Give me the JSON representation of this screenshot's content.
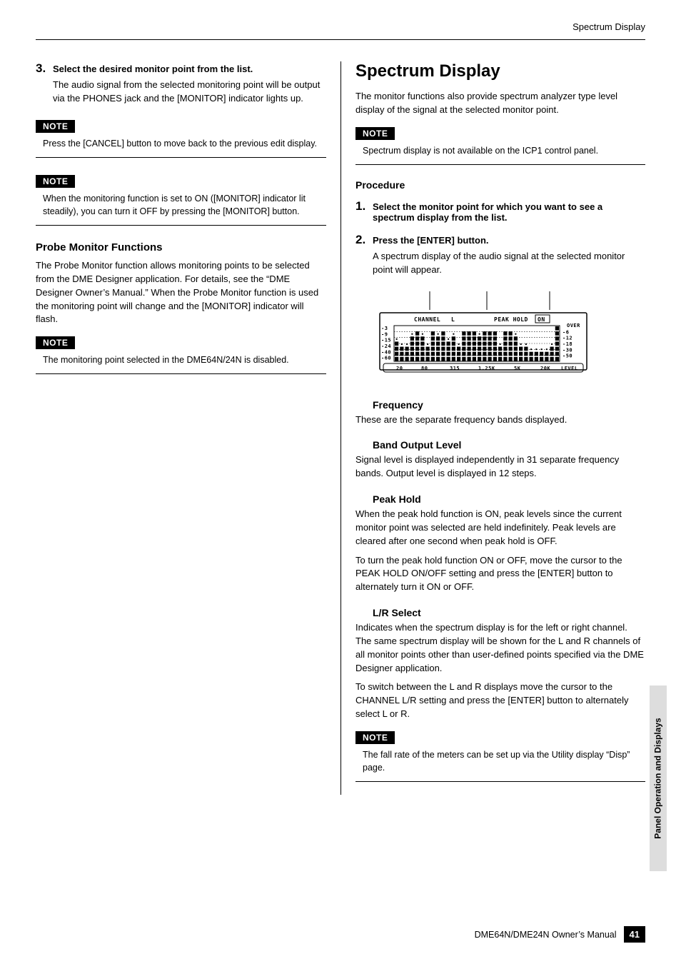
{
  "running_header": "Spectrum Display",
  "left": {
    "step3": {
      "num": "3.",
      "title": "Select the desired monitor point from the list.",
      "body": "The audio signal from the selected monitoring point will be output via the PHONES jack and the [MONITOR] indicator lights up."
    },
    "note1_label": "NOTE",
    "note1_body": "Press the [CANCEL] button to move back to the previous edit display.",
    "note2_label": "NOTE",
    "note2_body": "When the monitoring function is set to ON ([MONITOR] indicator lit steadily), you can turn it OFF by pressing the [MONITOR] button.",
    "probe_h": "Probe Monitor Functions",
    "probe_body": "The Probe Monitor function allows monitoring points to be selected from the DME Designer application. For details, see the “DME Designer Owner’s Manual.” When the Probe Monitor function is used the monitoring point will change and the [MONITOR] indicator will flash.",
    "note3_label": "NOTE",
    "note3_body": "The monitoring point selected in the DME64N/24N is disabled."
  },
  "right": {
    "heading": "Spectrum Display",
    "intro": "The monitor functions also provide spectrum analyzer type level display of the signal at the selected monitor point.",
    "note1_label": "NOTE",
    "note1_body": "Spectrum display is not available on the ICP1 control panel.",
    "proc_h": "Procedure",
    "step1": {
      "num": "1.",
      "title": "Select the monitor point for which you want to see a spectrum display from the list."
    },
    "step2": {
      "num": "2.",
      "title": "Press the [ENTER] button.",
      "body": "A spectrum display of the audio signal at the selected monitor point will appear."
    },
    "spectrum": {
      "label_channel": "CHANNEL",
      "label_lr": "L",
      "label_peak": "PEAK HOLD",
      "label_on": "ON",
      "label_over": "OVER",
      "y_left": [
        "-3",
        "-9",
        "-15",
        "-24",
        "-40",
        "-60"
      ],
      "y_right": [
        "-6",
        "-12",
        "-18",
        "-30",
        "-50"
      ],
      "x_ticks": [
        "20",
        "80",
        "315",
        "1.25K",
        "5K",
        "20K"
      ],
      "x_right": "LEVEL",
      "bars": [
        4,
        3,
        3,
        5,
        6,
        5,
        3,
        6,
        5,
        6,
        4,
        5,
        3,
        6,
        6,
        6,
        5,
        6,
        6,
        6,
        3,
        6,
        6,
        5,
        3,
        3,
        2,
        2,
        2,
        2,
        3,
        7
      ],
      "lead_lines": [
        80,
        160,
        248
      ]
    },
    "freq_h": "Frequency",
    "freq_body": "These are the separate frequency bands displayed.",
    "band_h": "Band Output Level",
    "band_body": "Signal level is displayed independently in 31 separate frequency bands. Output level is displayed in 12 steps.",
    "peak_h": "Peak Hold",
    "peak_body1": "When the peak hold function is ON, peak levels since the current monitor point was selected are held indefinitely. Peak levels are cleared after one second when peak hold is OFF.",
    "peak_body2": "To turn the peak hold function ON or OFF, move the cursor to the PEAK HOLD ON/OFF setting and press the [ENTER] button to alternately turn it ON or OFF.",
    "lr_h": "L/R Select",
    "lr_body1": "Indicates when the spectrum display is for the left or right channel. The same spectrum display will be shown for the L and R channels of all monitor points other than user-defined points specified via the DME Designer application.",
    "lr_body2": "To switch between the L and R displays move the cursor to the CHANNEL L/R setting and press the [ENTER] button to alternately select L or R.",
    "note2_label": "NOTE",
    "note2_body": "The fall rate of the meters can be set up via the Utility display “Disp” page."
  },
  "side_tab": "Panel Operation and Displays",
  "footer_text": "DME64N/DME24N Owner’s Manual",
  "page_num": "41"
}
